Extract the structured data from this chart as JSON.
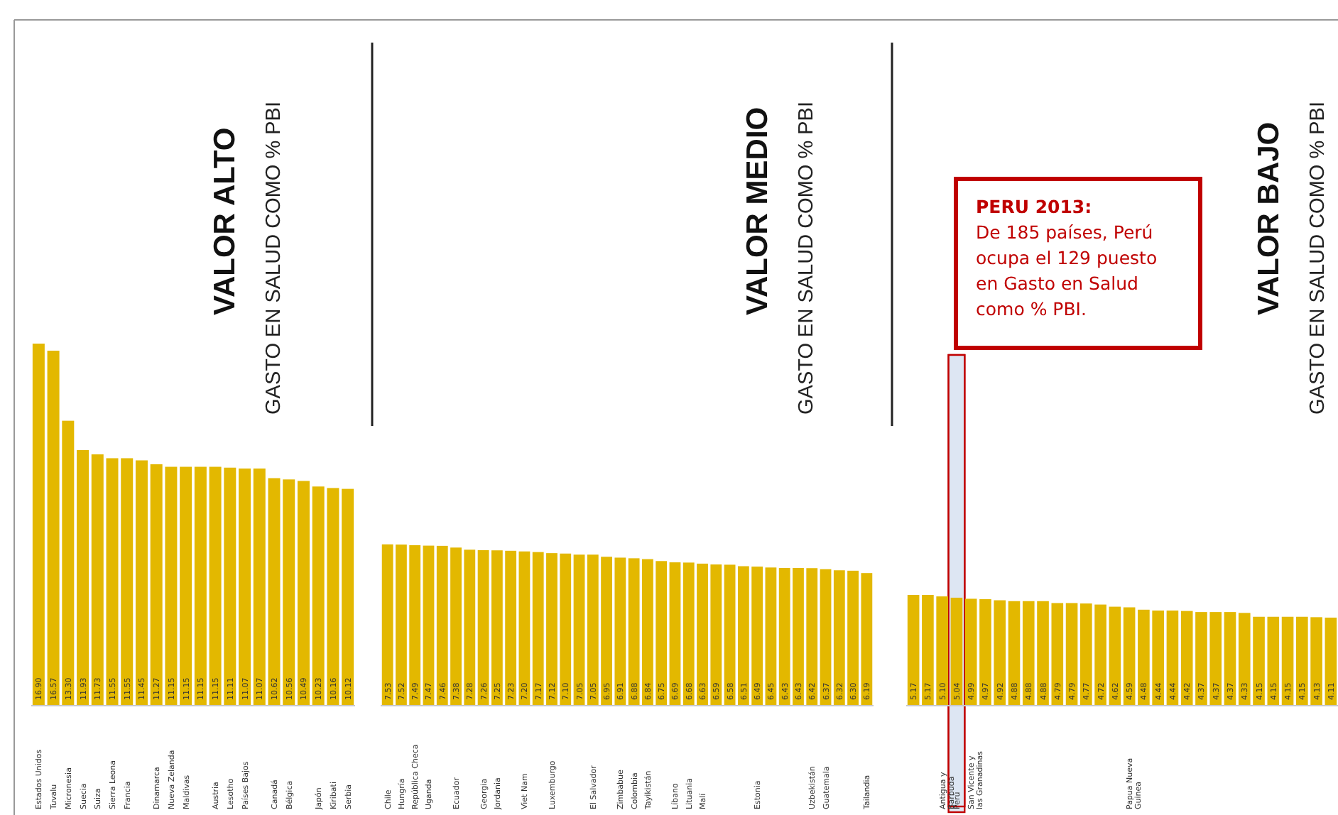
{
  "chart_data": [
    {
      "type": "bar",
      "title": "VALOR ALTO",
      "subtitle": "GASTO EN SALUD COMO % PBI",
      "color": "#e3b800",
      "categories": [
        "Estados Unidos",
        "Tuvalu",
        "Micronesia",
        "Suecia",
        "Suiza",
        "Sierra Leona",
        "Francia",
        null,
        "Dinamarca",
        "Nueva Zelanda",
        "Maldivas",
        null,
        "Austria",
        "Lesotho",
        "Países Bajos",
        null,
        "Canadá",
        "Bélgica",
        null,
        "Japón",
        "Kiribati",
        "Serbia"
      ],
      "values": [
        16.9,
        16.57,
        13.3,
        11.93,
        11.73,
        11.55,
        11.55,
        11.45,
        11.27,
        11.15,
        11.15,
        11.15,
        11.15,
        11.11,
        11.07,
        11.07,
        10.62,
        10.56,
        10.49,
        10.23,
        10.16,
        10.12
      ],
      "value_labels": [
        "16.90",
        "16.57",
        "13.30",
        "11.93",
        "11.73",
        "11.55",
        "11.55",
        "11.45",
        "11.27",
        "11.15",
        "11.15",
        "11.15",
        "11.15",
        "11.11",
        "11.07",
        "11.07",
        "10.62",
        "10.56",
        "10.49",
        "10.23",
        "10.16",
        "10.12"
      ]
    },
    {
      "type": "bar",
      "title": "VALOR MEDIO",
      "subtitle": "GASTO EN SALUD COMO % PBI",
      "color": "#e3b800",
      "categories": [
        "Chile",
        "Hungría",
        "República Checa",
        "Uganda",
        null,
        "Ecuador",
        null,
        "Georgia",
        "Jordania",
        null,
        "Viet Nam",
        null,
        "Luxemburgo",
        null,
        null,
        "El Salvador",
        null,
        "Zimbabue",
        "Colombia",
        "Tayikistán",
        null,
        "Líbano",
        "Lituania",
        "Malí",
        null,
        null,
        null,
        "Estonia",
        null,
        null,
        null,
        "Uzbekistán",
        "Guatemala",
        null,
        null,
        "Tailandia"
      ],
      "values": [
        7.53,
        7.52,
        7.49,
        7.47,
        7.46,
        7.38,
        7.28,
        7.26,
        7.25,
        7.23,
        7.2,
        7.17,
        7.12,
        7.1,
        7.05,
        7.05,
        6.95,
        6.91,
        6.88,
        6.84,
        6.75,
        6.69,
        6.68,
        6.63,
        6.59,
        6.58,
        6.51,
        6.49,
        6.45,
        6.43,
        6.43,
        6.42,
        6.37,
        6.32,
        6.3,
        6.19
      ],
      "value_labels": [
        "7.53",
        "7.52",
        "7.49",
        "7.47",
        "7.46",
        "7.38",
        "7.28",
        "7.26",
        "7.25",
        "7.23",
        "7.20",
        "7.17",
        "7.12",
        "7.10",
        "7.05",
        "7.05",
        "6.95",
        "6.91",
        "6.88",
        "6.84",
        "6.75",
        "6.69",
        "6.68",
        "6.63",
        "6.59",
        "6.58",
        "6.51",
        "6.49",
        "6.45",
        "6.43",
        "6.43",
        "6.42",
        "6.37",
        "6.32",
        "6.30",
        "6.19"
      ]
    },
    {
      "type": "bar",
      "title": "VALOR BAJO",
      "subtitle": "GASTO EN SALUD COMO % PBI",
      "color": "#e3b800",
      "categories": [
        null,
        null,
        "Antigua y Barbuda",
        "Perú",
        "San Vicente y las Granadinas",
        null,
        null,
        null,
        null,
        null,
        null,
        null,
        null,
        null,
        null,
        "Papua Nueva Guinea",
        null,
        null,
        null,
        null,
        null,
        null,
        null,
        null,
        null,
        null,
        null,
        null,
        null,
        null
      ],
      "values": [
        5.17,
        5.17,
        5.1,
        5.04,
        4.99,
        4.97,
        4.92,
        4.88,
        4.88,
        4.88,
        4.79,
        4.79,
        4.77,
        4.72,
        4.62,
        4.59,
        4.48,
        4.44,
        4.44,
        4.42,
        4.37,
        4.37,
        4.37,
        4.33,
        4.15,
        4.15,
        4.15,
        4.15,
        4.13,
        4.11
      ],
      "value_labels": [
        "5.17",
        "5.17",
        "5.10",
        "5.04",
        "4.99",
        "4.97",
        "4.92",
        "4.88",
        "4.88",
        "4.88",
        "4.79",
        "4.79",
        "4.77",
        "4.72",
        "4.62",
        "4.59",
        "4.48",
        "4.44",
        "4.44",
        "4.42",
        "4.37",
        "4.37",
        "4.37",
        "4.33",
        "4.15",
        "4.15",
        "4.15",
        "4.15",
        "4.13",
        "4.11"
      ],
      "annotations": [
        "PERU 2013:\nDe 185 países, Perú ocupa el 129 puesto en Gasto en Salud como % PBI."
      ]
    }
  ]
}
